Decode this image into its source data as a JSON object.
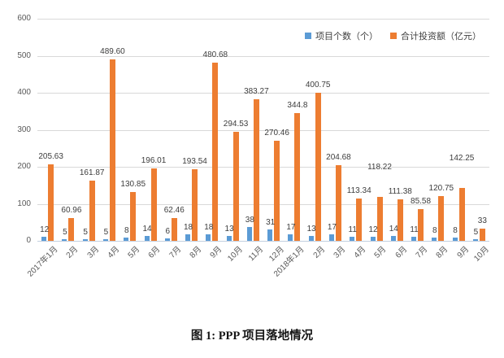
{
  "caption": "图 1: PPP 项目落地情况",
  "chart_data": {
    "type": "bar",
    "title": "",
    "xlabel": "",
    "ylabel": "",
    "categories": [
      "2017年1月",
      "2月",
      "3月",
      "4月",
      "5月",
      "6月",
      "7月",
      "8月",
      "9月",
      "10月",
      "11月",
      "12月",
      "2018年1月",
      "2月",
      "3月",
      "4月",
      "5月",
      "6月",
      "7月",
      "8月",
      "9月",
      "10月"
    ],
    "series": [
      {
        "name": "项目个数（个）",
        "color": "#5B9BD5",
        "values": [
          12,
          5,
          5,
          5,
          8,
          14,
          6,
          18,
          18,
          13,
          38,
          31,
          17,
          13,
          17,
          11,
          12,
          14,
          11,
          8,
          8,
          5
        ],
        "labels": [
          "12",
          "5",
          "5",
          "5",
          "8",
          "14",
          "6",
          "18",
          "18",
          "13",
          "38",
          "31",
          "17",
          "13",
          "17",
          "11",
          "12",
          "14",
          "11",
          "8",
          "8",
          "5"
        ]
      },
      {
        "name": "合计投资额（亿元）",
        "color": "#ED7D31",
        "values": [
          205.63,
          60.96,
          161.87,
          489.6,
          130.85,
          196.01,
          62.46,
          193.54,
          480.68,
          294.53,
          383.27,
          270.46,
          344.8,
          400.75,
          204.68,
          113.34,
          118.22,
          111.38,
          85.58,
          120.75,
          142.25,
          33
        ],
        "labels": [
          "205.63",
          "60.96",
          "161.87",
          "489.60",
          "130.85",
          "196.01",
          "62.46",
          "193.54",
          "480.68",
          "294.53",
          "383.27",
          "270.46",
          "344.8",
          "400.75",
          "204.68",
          "113.34",
          "118.22",
          "111.38",
          "85.58",
          "120.75",
          "142.25",
          "33"
        ]
      }
    ],
    "ylim": [
      0,
      600
    ],
    "yticks": [
      0,
      100,
      200,
      300,
      400,
      500,
      600
    ],
    "grid": true,
    "legend_position": "top-right",
    "data_labels": true,
    "raised_label_indices": [
      16,
      20
    ],
    "colors": {
      "grid": "#d9d9d9",
      "axis_text": "#595959",
      "label_text": "#3d3d3d"
    }
  }
}
